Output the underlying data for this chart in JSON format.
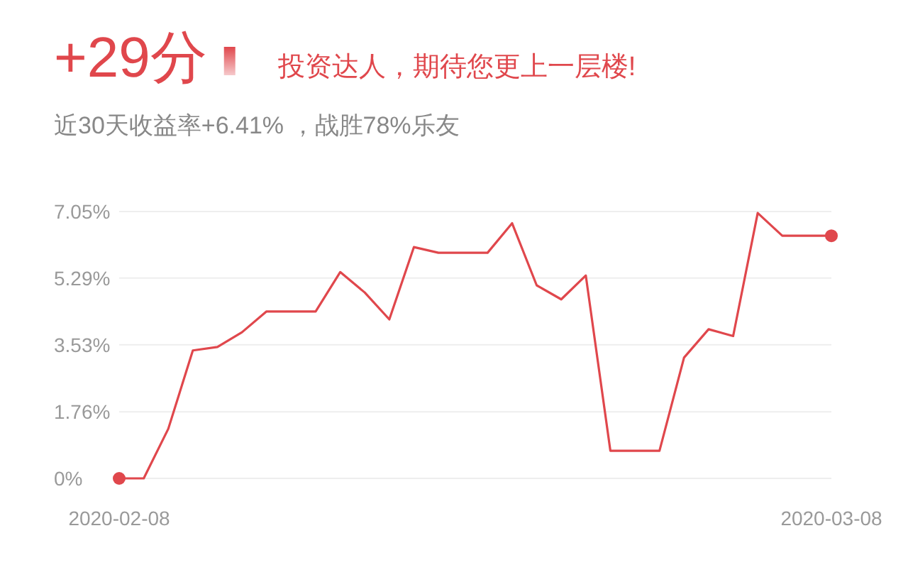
{
  "chart_data": {
    "type": "line",
    "title": "+29分",
    "subtitle": "近30天收益率+6.41% ，战胜78%乐友",
    "annotations": [
      "投资达人，期待您更上一层楼!"
    ],
    "x": [
      "2020-02-08",
      "2020-02-09",
      "2020-02-10",
      "2020-02-11",
      "2020-02-12",
      "2020-02-13",
      "2020-02-14",
      "2020-02-15",
      "2020-02-16",
      "2020-02-17",
      "2020-02-18",
      "2020-02-19",
      "2020-02-20",
      "2020-02-21",
      "2020-02-22",
      "2020-02-23",
      "2020-02-24",
      "2020-02-25",
      "2020-02-26",
      "2020-02-27",
      "2020-02-28",
      "2020-02-29",
      "2020-03-01",
      "2020-03-02",
      "2020-03-03",
      "2020-03-04",
      "2020-03-05",
      "2020-03-06",
      "2020-03-07",
      "2020-03-08"
    ],
    "series": [
      {
        "color": "#e0474c",
        "values": [
          0,
          0,
          1.31,
          3.38,
          3.47,
          3.86,
          4.41,
          4.41,
          4.41,
          5.45,
          4.91,
          4.2,
          6.11,
          5.96,
          5.96,
          5.96,
          6.74,
          5.1,
          4.73,
          5.36,
          0.73,
          0.73,
          0.73,
          3.19,
          3.94,
          3.76,
          7.01,
          6.41,
          6.41,
          6.41
        ]
      },
      {
        "type": "scatter",
        "color": "#e0474c",
        "marker": "circle",
        "x": [
          "2020-02-08",
          "2020-03-08"
        ],
        "values": [
          0,
          6.41
        ]
      }
    ],
    "xlim": [
      "2020-02-08",
      "2020-03-08"
    ],
    "xticks": [
      {
        "value": "2020-02-08",
        "label": "2020-02-08"
      },
      {
        "value": "2020-03-08",
        "label": "2020-03-08"
      }
    ],
    "ylim": [
      0,
      7.05
    ],
    "yticks": [
      {
        "value": 0,
        "label": "0%"
      },
      {
        "value": 1.76,
        "label": "1.76%"
      },
      {
        "value": 3.53,
        "label": "3.53%"
      },
      {
        "value": 5.29,
        "label": "5.29%"
      },
      {
        "value": 7.05,
        "label": "7.05%"
      }
    ],
    "grid": "y",
    "marker": "none",
    "line_style": "solid"
  }
}
